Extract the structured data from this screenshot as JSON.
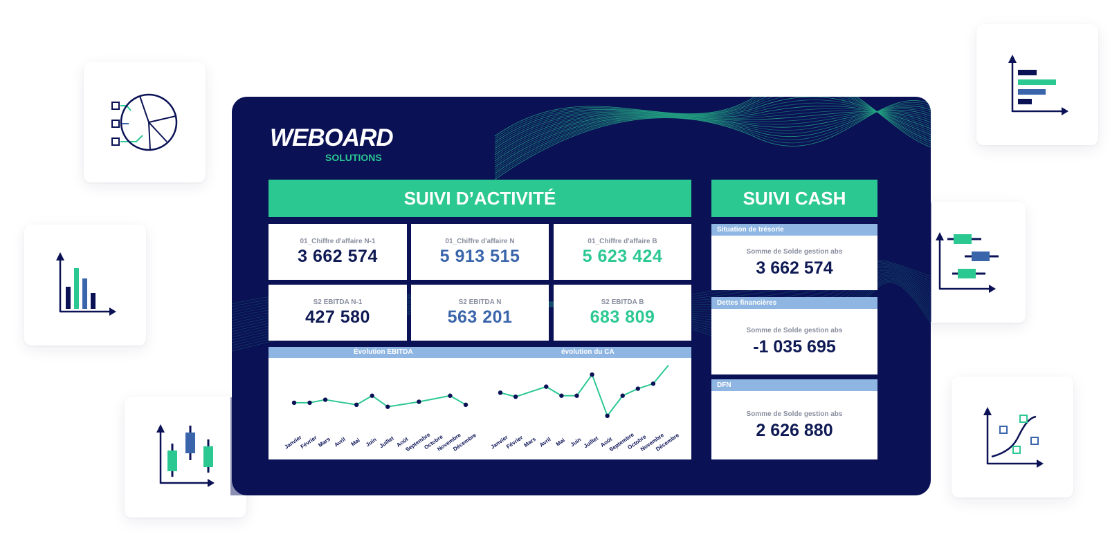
{
  "brand": {
    "logo_main": "WEBOARD",
    "logo_sub": "SOLUTIONS"
  },
  "activity": {
    "title": "SUIVI D’ACTIVITÉ",
    "kpis": [
      {
        "label": "01_Chiffre d'affaire N-1",
        "value": "3 662 574",
        "color": "#0f1a54"
      },
      {
        "label": "01_Chiffre d'affaire N",
        "value": "5 913 515",
        "color": "#3a65ab"
      },
      {
        "label": "01_Chiffre d'affaire B",
        "value": "5 623 424",
        "color": "#2cc892"
      },
      {
        "label": "S2 EBITDA N-1",
        "value": "427 580",
        "color": "#0f1a54"
      },
      {
        "label": "S2 EBITDA N",
        "value": "563 201",
        "color": "#3a65ab"
      },
      {
        "label": "S2 EBITDA B",
        "value": "683 809",
        "color": "#2cc892"
      }
    ]
  },
  "cash": {
    "title": "SUIVI CASH",
    "panels": [
      {
        "header": "Situation de trésorie",
        "label": "Somme de Solde gestion abs",
        "value": "3 662 574"
      },
      {
        "header": "Dettes financières",
        "label": "Somme de Solde gestion abs",
        "value": "-1 035 695"
      },
      {
        "header": "DFN",
        "label": "Somme de Solde gestion abs",
        "value": "2 626 880"
      }
    ]
  },
  "chart_data": [
    {
      "type": "line",
      "title": "Évolution EBITDA",
      "categories": [
        "Janvier",
        "Février",
        "Mars",
        "Avril",
        "Mai",
        "Juin",
        "Juillet",
        "Août",
        "Septembre",
        "Octobre",
        "Novembre",
        "Décembre"
      ],
      "series": [
        {
          "values": [
            50,
            50,
            53,
            null,
            48,
            57,
            46,
            null,
            51,
            null,
            57,
            48
          ]
        }
      ]
    },
    {
      "type": "line",
      "title": "évolution du CA",
      "categories": [
        "Janvier",
        "Février",
        "Mars",
        "Avril",
        "Mai",
        "Juin",
        "Juillet",
        "Août",
        "Septembre",
        "Octobre",
        "Novembre",
        "Décembre"
      ],
      "series": [
        {
          "values": [
            60,
            56,
            null,
            66,
            57,
            57,
            78,
            37,
            57,
            64,
            69,
            null
          ]
        }
      ]
    }
  ],
  "colors": {
    "navy": "#0a1155",
    "green": "#2cc892",
    "blue": "#3a65ab",
    "light_blue": "#8fb6e2"
  },
  "decor_icons": [
    "pie-checklist-icon",
    "bar-chart-icon",
    "candlestick-icon",
    "horizontal-bar-icon",
    "gantt-icon",
    "scatter-curve-icon"
  ]
}
